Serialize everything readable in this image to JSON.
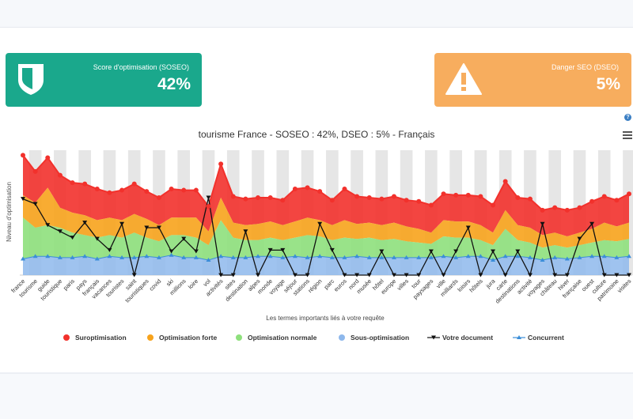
{
  "cards": {
    "soseo": {
      "label": "Score d'optimisation (SOSEO)",
      "value": "42%",
      "color": "#1aa88c",
      "icon": "shield-icon"
    },
    "dseo": {
      "label": "Danger SEO (DSEO)",
      "value": "5%",
      "color": "#f7ad5e",
      "icon": "warning-icon"
    }
  },
  "toolbar": {
    "help_icon": "help-icon",
    "help_symbol": "?",
    "menu_icon": "hamburger-menu-icon"
  },
  "chart_data": {
    "type": "area",
    "title": "tourisme France - SOSEO : 42%, DSEO : 5% - Français",
    "xlabel": "Les termes importants liés à votre requête",
    "ylabel": "Niveau d'optimisation",
    "grid": "alternating vertical bands",
    "legend_position": "bottom",
    "categories": [
      "france",
      "tourisme",
      "guide",
      "touristique",
      "paris",
      "pays",
      "français",
      "vacances",
      "touristes",
      "saint",
      "touristiques",
      "covid",
      "ski",
      "millions",
      "loire",
      "vol",
      "activités",
      "sites",
      "destination",
      "alpes",
      "monde",
      "voyage",
      "séjour",
      "stations",
      "région",
      "parc",
      "euros",
      "nord",
      "musée",
      "hôtel",
      "europe",
      "villes",
      "tour",
      "paysages",
      "ville",
      "milliards",
      "loisirs",
      "hôtels",
      "jura",
      "carte",
      "destinations",
      "activité",
      "voyages",
      "château",
      "hiver",
      "française",
      "ouest",
      "culture",
      "patrimoine",
      "visites"
    ],
    "series": [
      {
        "name": "Suroptimisation",
        "color": "#f2312c",
        "marker": "circle",
        "values": [
          96,
          83,
          94,
          80,
          74,
          73,
          69,
          66,
          68,
          73,
          67,
          62,
          69,
          68,
          68,
          55,
          89,
          63,
          61,
          62,
          62,
          60,
          69,
          70,
          67,
          60,
          69,
          63,
          62,
          61,
          63,
          60,
          59,
          56,
          65,
          64,
          64,
          63,
          56,
          75,
          62,
          61,
          52,
          54,
          52,
          54,
          59,
          63,
          60,
          65
        ]
      },
      {
        "name": "Optimisation forte",
        "color": "#f7a31c",
        "marker": "none",
        "values": [
          64,
          58,
          70,
          54,
          50,
          48,
          44,
          46,
          44,
          49,
          45,
          40,
          46,
          46,
          46,
          35,
          62,
          42,
          40,
          41,
          43,
          40,
          43,
          46,
          44,
          40,
          44,
          41,
          42,
          40,
          42,
          39,
          37,
          34,
          44,
          43,
          43,
          40,
          34,
          52,
          40,
          38,
          32,
          34,
          31,
          34,
          37,
          42,
          39,
          42
        ]
      },
      {
        "name": "Optimisation normale",
        "color": "#8ee07c",
        "marker": "none",
        "values": [
          46,
          38,
          40,
          38,
          34,
          32,
          30,
          32,
          30,
          34,
          30,
          27,
          32,
          32,
          30,
          24,
          44,
          30,
          28,
          28,
          30,
          28,
          30,
          32,
          31,
          28,
          30,
          29,
          30,
          28,
          29,
          27,
          26,
          25,
          31,
          30,
          30,
          28,
          24,
          37,
          28,
          26,
          22,
          24,
          22,
          24,
          26,
          28,
          27,
          29
        ]
      },
      {
        "name": "Sous-optimisation",
        "color": "#8eb8ec",
        "marker": "triangle",
        "values": [
          13,
          15,
          15,
          14,
          14,
          15,
          13,
          15,
          14,
          14,
          15,
          14,
          16,
          14,
          14,
          12,
          15,
          14,
          14,
          15,
          15,
          14,
          15,
          14,
          15,
          14,
          14,
          15,
          14,
          14,
          14,
          14,
          14,
          14,
          15,
          14,
          15,
          15,
          12,
          15,
          15,
          14,
          12,
          14,
          13,
          14,
          15,
          15,
          14,
          15
        ]
      },
      {
        "name": "Votre document",
        "color": "#111111",
        "marker": "triangle-down",
        "values": [
          61,
          57,
          40,
          35,
          30,
          42,
          29,
          20,
          41,
          0,
          38,
          38,
          19,
          29,
          19,
          62,
          0,
          0,
          35,
          0,
          20,
          20,
          0,
          0,
          41,
          20,
          0,
          0,
          0,
          19,
          0,
          0,
          0,
          19,
          0,
          19,
          38,
          0,
          19,
          0,
          19,
          0,
          41,
          0,
          0,
          29,
          41,
          0,
          0,
          0
        ]
      },
      {
        "name": "Concurrent",
        "color": "#3b8ed8",
        "marker": "triangle",
        "values": [
          13,
          15,
          15,
          14,
          14,
          15,
          13,
          15,
          14,
          14,
          15,
          14,
          16,
          14,
          14,
          12,
          15,
          14,
          14,
          15,
          15,
          14,
          15,
          14,
          15,
          14,
          14,
          15,
          14,
          14,
          14,
          14,
          14,
          14,
          15,
          14,
          15,
          15,
          12,
          15,
          15,
          14,
          12,
          14,
          13,
          14,
          15,
          15,
          14,
          15
        ]
      }
    ],
    "ylim": [
      0,
      100
    ]
  }
}
